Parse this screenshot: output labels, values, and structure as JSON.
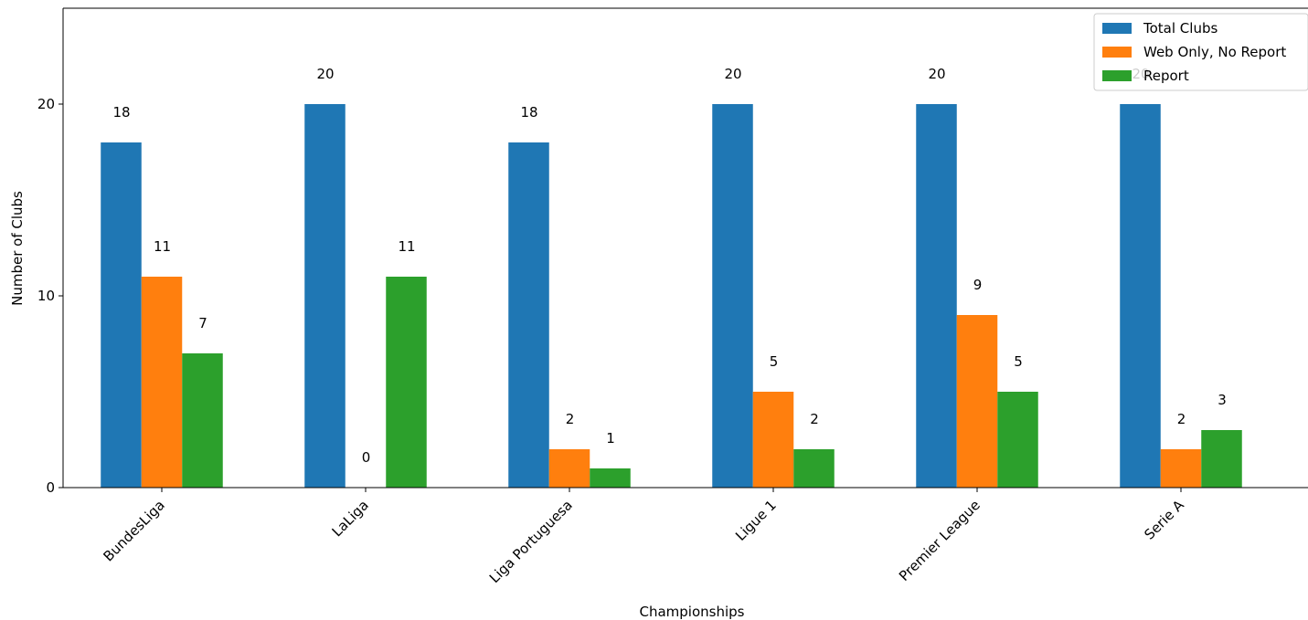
{
  "chart_data": {
    "type": "bar",
    "title": "",
    "xlabel": "Championships",
    "ylabel": "Number of Clubs",
    "categories": [
      "BundesLiga",
      "LaLiga",
      "Liga Portuguesa",
      "Ligue 1",
      "Premier League",
      "Serie A"
    ],
    "series": [
      {
        "name": "Total Clubs",
        "color": "#1f77b4",
        "values": [
          18,
          20,
          18,
          20,
          20,
          20
        ]
      },
      {
        "name": "Web Only, No Report",
        "color": "#ff7f0e",
        "values": [
          11,
          0,
          2,
          5,
          9,
          2
        ]
      },
      {
        "name": "Report",
        "color": "#2ca02c",
        "values": [
          7,
          11,
          1,
          2,
          5,
          3
        ]
      }
    ],
    "ylim": [
      0,
      25
    ],
    "yticks": [
      0,
      10,
      20
    ],
    "grid": false,
    "legend_position": "top-right",
    "data_labels": true
  }
}
